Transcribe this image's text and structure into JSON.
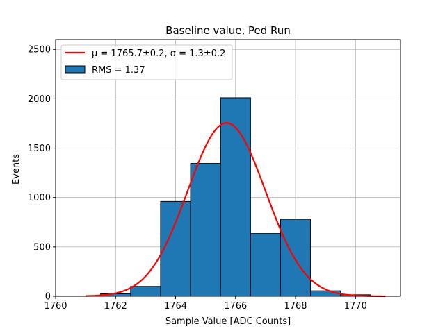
{
  "chart_data": {
    "type": "bar",
    "title": "Baseline value, Ped Run",
    "xlabel": "Sample Value [ADC Counts]",
    "ylabel": "Events",
    "xlim": [
      1760,
      1771.5
    ],
    "ylim": [
      0,
      2600
    ],
    "x_ticks": [
      1760,
      1762,
      1764,
      1766,
      1768,
      1770
    ],
    "y_ticks": [
      0,
      500,
      1000,
      1500,
      2000,
      2500
    ],
    "grid": true,
    "legend_position": "top-left",
    "histogram": {
      "name": "RMS = 1.37",
      "color": "#1f77b4",
      "edge_color": "#000000",
      "bins": [
        {
          "x0": 1760.5,
          "x1": 1761.5,
          "value": 0
        },
        {
          "x0": 1761.5,
          "x1": 1762.5,
          "value": 25
        },
        {
          "x0": 1762.5,
          "x1": 1763.5,
          "value": 100
        },
        {
          "x0": 1763.5,
          "x1": 1764.5,
          "value": 960
        },
        {
          "x0": 1764.5,
          "x1": 1765.5,
          "value": 1345
        },
        {
          "x0": 1765.5,
          "x1": 1766.5,
          "value": 2010
        },
        {
          "x0": 1766.5,
          "x1": 1767.5,
          "value": 635
        },
        {
          "x0": 1767.5,
          "x1": 1768.5,
          "value": 780
        },
        {
          "x0": 1768.5,
          "x1": 1769.5,
          "value": 55
        },
        {
          "x0": 1769.5,
          "x1": 1770.5,
          "value": 15
        }
      ]
    },
    "fit": {
      "name": "μ = 1765.7±0.2, σ = 1.3±0.2",
      "color": "#ff0000",
      "mu": 1765.7,
      "sigma": 1.3,
      "amplitude": 1755,
      "x_range": [
        1761,
        1771
      ]
    }
  }
}
